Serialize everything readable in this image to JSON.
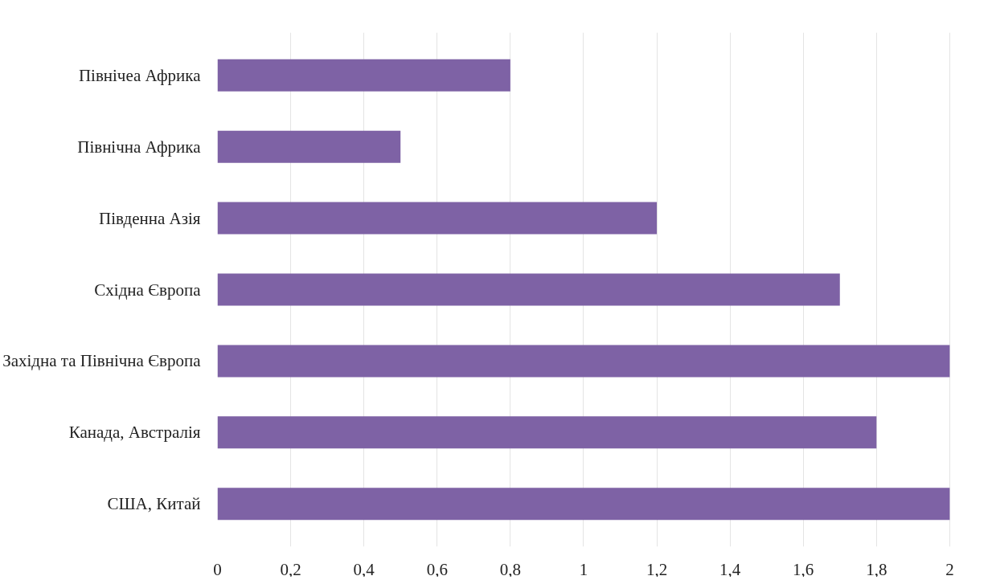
{
  "chart_data": {
    "type": "bar",
    "orientation": "horizontal",
    "categories": [
      "Північеа Африка",
      "Північна Африка",
      "Південна Азія",
      "Східна Європа",
      "Західна та Північна Європа",
      "Канада, Австралія",
      "США, Китай"
    ],
    "values": [
      0.8,
      0.5,
      1.2,
      1.7,
      2.0,
      1.8,
      2.0
    ],
    "color": "#7e62a5",
    "xlim": [
      0,
      2
    ],
    "xticks": [
      0,
      {
        "value": 0.2,
        "label": "0,2"
      },
      {
        "value": 0.4,
        "label": "0,4"
      },
      {
        "value": 0.6,
        "label": "0,6"
      },
      {
        "value": 0.8,
        "label": "0,8"
      },
      1,
      {
        "value": 1.2,
        "label": "1,2"
      },
      {
        "value": 1.4,
        "label": "1,4"
      },
      {
        "value": 1.6,
        "label": "1,6"
      },
      {
        "value": 1.8,
        "label": "1,8"
      },
      2
    ],
    "grid": "x"
  }
}
